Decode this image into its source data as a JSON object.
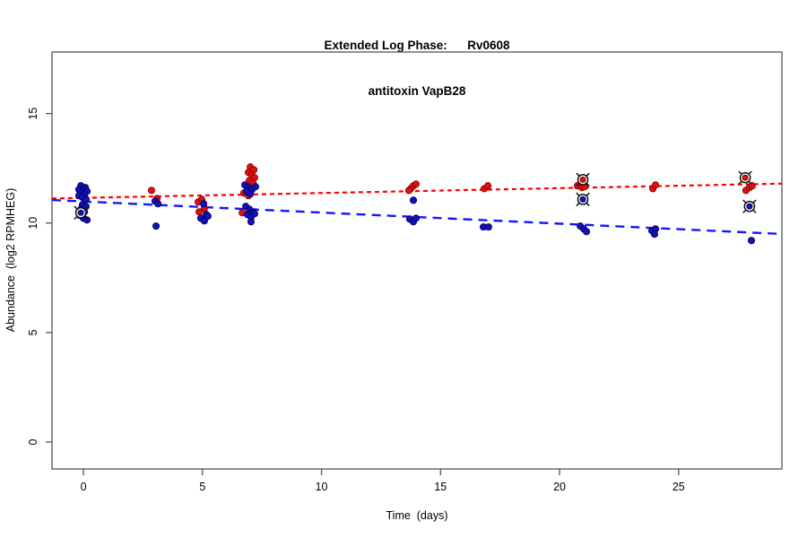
{
  "title": {
    "line1": "Extended Log Phase:      Rv0608",
    "line2": "antitoxin VapB28"
  },
  "axes": {
    "xlabel": "Time  (days)",
    "ylabel": "Abundance  (log2 RPMHEG)"
  },
  "colors": {
    "background": "#ffffff",
    "box": "#555555",
    "red_point_fill": "#dd1111",
    "red_point_edge": "#8f0000",
    "blue_point_fill": "#1212bb",
    "blue_point_edge": "#000060",
    "red_trend": "#ff0000",
    "blue_trend": "#1515ff",
    "flag_ring": "#111111"
  },
  "chart_data": {
    "type": "scatter",
    "title": "Extended Log Phase: Rv0608 antitoxin VapB28",
    "xlabel": "Time (days)",
    "ylabel": "Abundance (log2 RPMHEG)",
    "xlim": [
      -1.32,
      29.34
    ],
    "ylim": [
      -1.23,
      17.81
    ],
    "x_ticks": [
      0,
      5,
      10,
      15,
      20,
      25
    ],
    "y_ticks": [
      0,
      5,
      10,
      15
    ],
    "grid": false,
    "legend": "none",
    "series": [
      {
        "name": "red-condition",
        "marker": "filled-circle",
        "points": [
          [
            -0.05,
            11.2
          ],
          [
            0.08,
            11.12
          ],
          [
            2.86,
            11.49
          ],
          [
            3.09,
            11.12
          ],
          [
            4.82,
            10.96
          ],
          [
            4.97,
            11.08
          ],
          [
            5.08,
            10.67
          ],
          [
            4.86,
            10.51
          ],
          [
            7.01,
            12.56
          ],
          [
            7.16,
            12.43
          ],
          [
            6.93,
            12.31
          ],
          [
            7.08,
            12.19
          ],
          [
            7.19,
            12.07
          ],
          [
            6.97,
            11.94
          ],
          [
            7.12,
            11.82
          ],
          [
            6.93,
            11.25
          ],
          [
            6.74,
            11.37
          ],
          [
            6.67,
            10.47
          ],
          [
            13.75,
            11.57
          ],
          [
            13.86,
            11.7
          ],
          [
            13.97,
            11.78
          ],
          [
            13.67,
            11.49
          ],
          [
            16.84,
            11.57
          ],
          [
            16.99,
            11.7
          ],
          [
            20.75,
            11.7
          ],
          [
            20.94,
            11.62
          ],
          [
            21.05,
            11.66
          ],
          [
            23.92,
            11.57
          ],
          [
            24.03,
            11.74
          ],
          [
            27.83,
            11.49
          ],
          [
            27.98,
            11.62
          ],
          [
            28.09,
            11.7
          ]
        ],
        "flagged_points": [
          [
            20.98,
            11.98
          ],
          [
            27.8,
            12.07
          ]
        ],
        "trend": {
          "x1": -1.32,
          "y1": 11.12,
          "x2": 29.34,
          "y2": 11.8,
          "dash": "5 4",
          "width": 2.2
        }
      },
      {
        "name": "blue-condition",
        "marker": "filled-circle",
        "points": [
          [
            -0.11,
            11.7
          ],
          [
            0.08,
            11.62
          ],
          [
            -0.19,
            11.53
          ],
          [
            0.0,
            11.49
          ],
          [
            0.15,
            11.45
          ],
          [
            -0.11,
            11.37
          ],
          [
            0.04,
            11.29
          ],
          [
            -0.19,
            11.25
          ],
          [
            -0.04,
            11.17
          ],
          [
            0.11,
            11.08
          ],
          [
            -0.04,
            10.84
          ],
          [
            0.11,
            10.76
          ],
          [
            -0.11,
            10.63
          ],
          [
            0.04,
            10.51
          ],
          [
            -0.15,
            10.35
          ],
          [
            0.0,
            10.22
          ],
          [
            0.15,
            10.14
          ],
          [
            3.01,
            11.0
          ],
          [
            3.13,
            10.88
          ],
          [
            3.05,
            9.86
          ],
          [
            5.05,
            10.88
          ],
          [
            5.16,
            10.39
          ],
          [
            4.93,
            10.22
          ],
          [
            5.08,
            10.1
          ],
          [
            5.23,
            10.31
          ],
          [
            6.78,
            11.74
          ],
          [
            6.93,
            11.62
          ],
          [
            7.08,
            11.53
          ],
          [
            6.85,
            11.45
          ],
          [
            7.23,
            11.66
          ],
          [
            7.01,
            11.33
          ],
          [
            6.82,
            10.76
          ],
          [
            6.97,
            10.63
          ],
          [
            7.12,
            10.51
          ],
          [
            6.89,
            10.39
          ],
          [
            7.04,
            10.27
          ],
          [
            7.19,
            10.43
          ],
          [
            7.04,
            10.06
          ],
          [
            13.86,
            11.04
          ],
          [
            13.71,
            10.18
          ],
          [
            13.86,
            10.06
          ],
          [
            13.97,
            10.22
          ],
          [
            16.8,
            9.82
          ],
          [
            17.02,
            9.82
          ],
          [
            20.87,
            9.86
          ],
          [
            21.02,
            9.73
          ],
          [
            21.13,
            9.61
          ],
          [
            23.88,
            9.65
          ],
          [
            24.03,
            9.73
          ],
          [
            23.99,
            9.49
          ],
          [
            28.06,
            9.2
          ]
        ],
        "flagged_points": [
          [
            -0.11,
            10.47
          ],
          [
            20.98,
            11.08
          ],
          [
            27.98,
            10.76
          ]
        ],
        "trend": {
          "x1": -1.32,
          "y1": 11.05,
          "x2": 29.34,
          "y2": 9.5,
          "dash": "10 7",
          "width": 2.4
        }
      }
    ]
  }
}
